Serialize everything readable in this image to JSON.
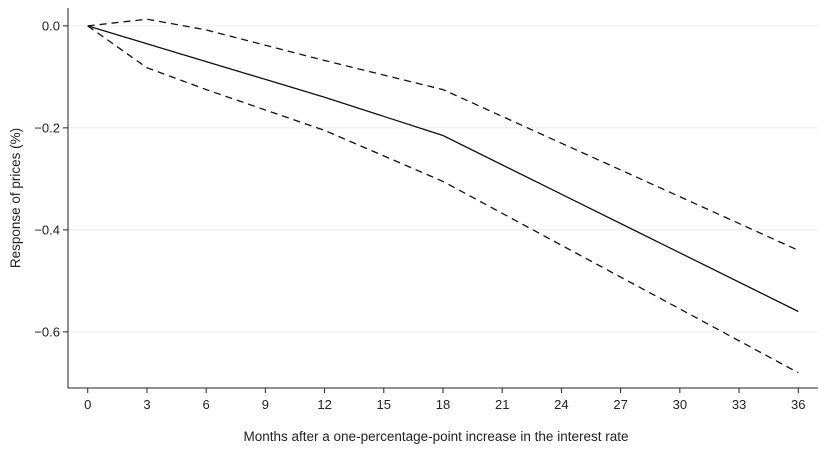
{
  "chart_data": {
    "type": "line",
    "title": "",
    "xlabel": "Months after a one-percentage-point increase in the interest rate",
    "ylabel": "Response of prices (%)",
    "xlim": [
      -1,
      37
    ],
    "ylim": [
      -0.71,
      0.035
    ],
    "x_ticks": [
      0,
      3,
      6,
      9,
      12,
      15,
      18,
      21,
      24,
      27,
      30,
      33,
      36
    ],
    "x_tick_labels": [
      "0",
      "3",
      "6",
      "9",
      "12",
      "15",
      "18",
      "21",
      "24",
      "27",
      "30",
      "33",
      "36"
    ],
    "y_ticks": [
      0.0,
      -0.2,
      -0.4,
      -0.6
    ],
    "y_tick_labels": [
      "0.0",
      "−0.2",
      "−0.4",
      "−0.6"
    ],
    "grid": true,
    "series": [
      {
        "style": "solid",
        "color": "#111111",
        "x": [
          0,
          3,
          6,
          9,
          12,
          18,
          24,
          30,
          36
        ],
        "y": [
          0.0,
          -0.035,
          -0.07,
          -0.105,
          -0.14,
          -0.215,
          -0.33,
          -0.445,
          -0.56
        ]
      },
      {
        "style": "dashed",
        "color": "#111111",
        "x": [
          0,
          3,
          6,
          12,
          18,
          24,
          30,
          36
        ],
        "y": [
          0.0,
          0.013,
          -0.008,
          -0.068,
          -0.125,
          -0.23,
          -0.335,
          -0.44
        ]
      },
      {
        "style": "dashed",
        "color": "#111111",
        "x": [
          0,
          3,
          6,
          12,
          18,
          24,
          30,
          36
        ],
        "y": [
          0.0,
          -0.082,
          -0.125,
          -0.205,
          -0.305,
          -0.43,
          -0.555,
          -0.68
        ]
      }
    ]
  }
}
